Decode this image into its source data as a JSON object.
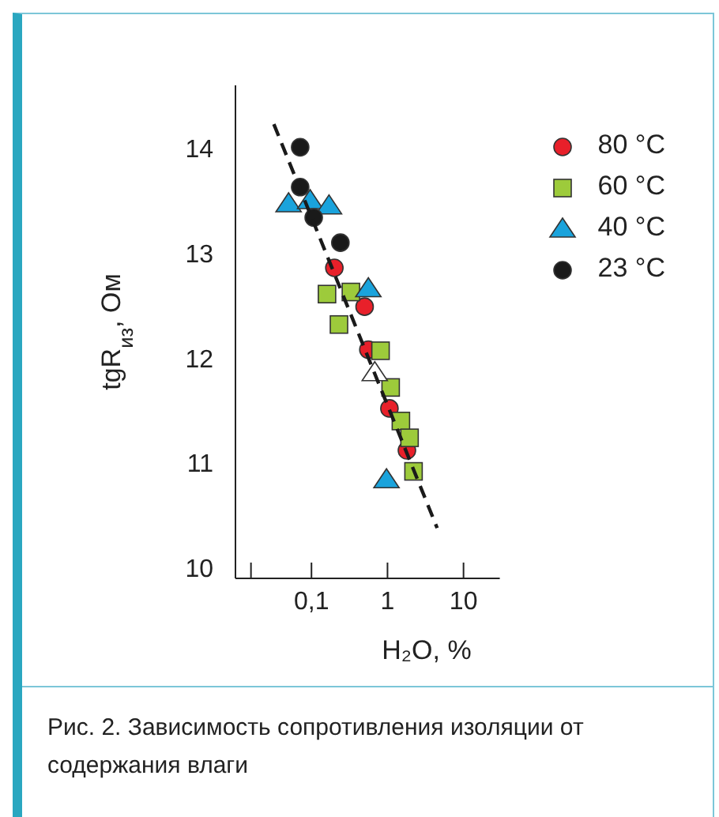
{
  "chart_data": {
    "type": "scatter",
    "title": "Рис. 2. Зависимость сопротивления изоляции от содержания влаги",
    "xlabel": "H₂O, %",
    "ylabel": "tgR$_{из}$, Ом",
    "log": "x",
    "xlim": [
      0.01,
      30
    ],
    "xticks": [
      {
        "value": 0.016,
        "label": null
      },
      {
        "value": 0.1,
        "label": "0,1"
      },
      1,
      10
    ],
    "ylim": [
      9.9,
      14.6
    ],
    "yticks": [
      10,
      11,
      12,
      13,
      14
    ],
    "legend": "top right",
    "series": [
      {
        "name": "80 °C",
        "color": "#e8202a",
        "marker": "circle",
        "x": [
          0.2,
          0.5,
          0.56,
          1.06,
          1.8
        ],
        "values": [
          12.86,
          12.49,
          12.08,
          11.52,
          11.12
        ]
      },
      {
        "name": "60 °C",
        "color": "#9dcb3b",
        "marker": "square",
        "x": [
          0.16,
          0.33,
          0.23,
          0.81,
          1.1,
          1.5,
          1.95,
          2.2
        ],
        "values": [
          12.61,
          12.63,
          12.32,
          12.07,
          11.72,
          11.4,
          11.24,
          10.92
        ]
      },
      {
        "name": "40 °C",
        "color": "#1aa3dc",
        "marker": "triangle",
        "x": [
          0.05,
          0.096,
          0.17,
          0.56,
          0.97
        ],
        "values": [
          13.47,
          13.5,
          13.45,
          12.66,
          10.84
        ]
      },
      {
        "name": "23 °C",
        "color": "#1a1a1a",
        "marker": "circle",
        "x": [
          0.071,
          0.071,
          0.107,
          0.24
        ],
        "values": [
          14.01,
          13.63,
          13.34,
          13.1
        ]
      },
      {
        "color": "#ffffff",
        "marker": "triangle",
        "x": [
          0.68
        ],
        "values": [
          11.86
        ]
      },
      {
        "type": "line",
        "color": "#1a1a1a",
        "line_style": "dashed",
        "marker": "none",
        "x": [
          0.032,
          4.5
        ],
        "values": [
          14.23,
          10.38
        ]
      }
    ]
  }
}
